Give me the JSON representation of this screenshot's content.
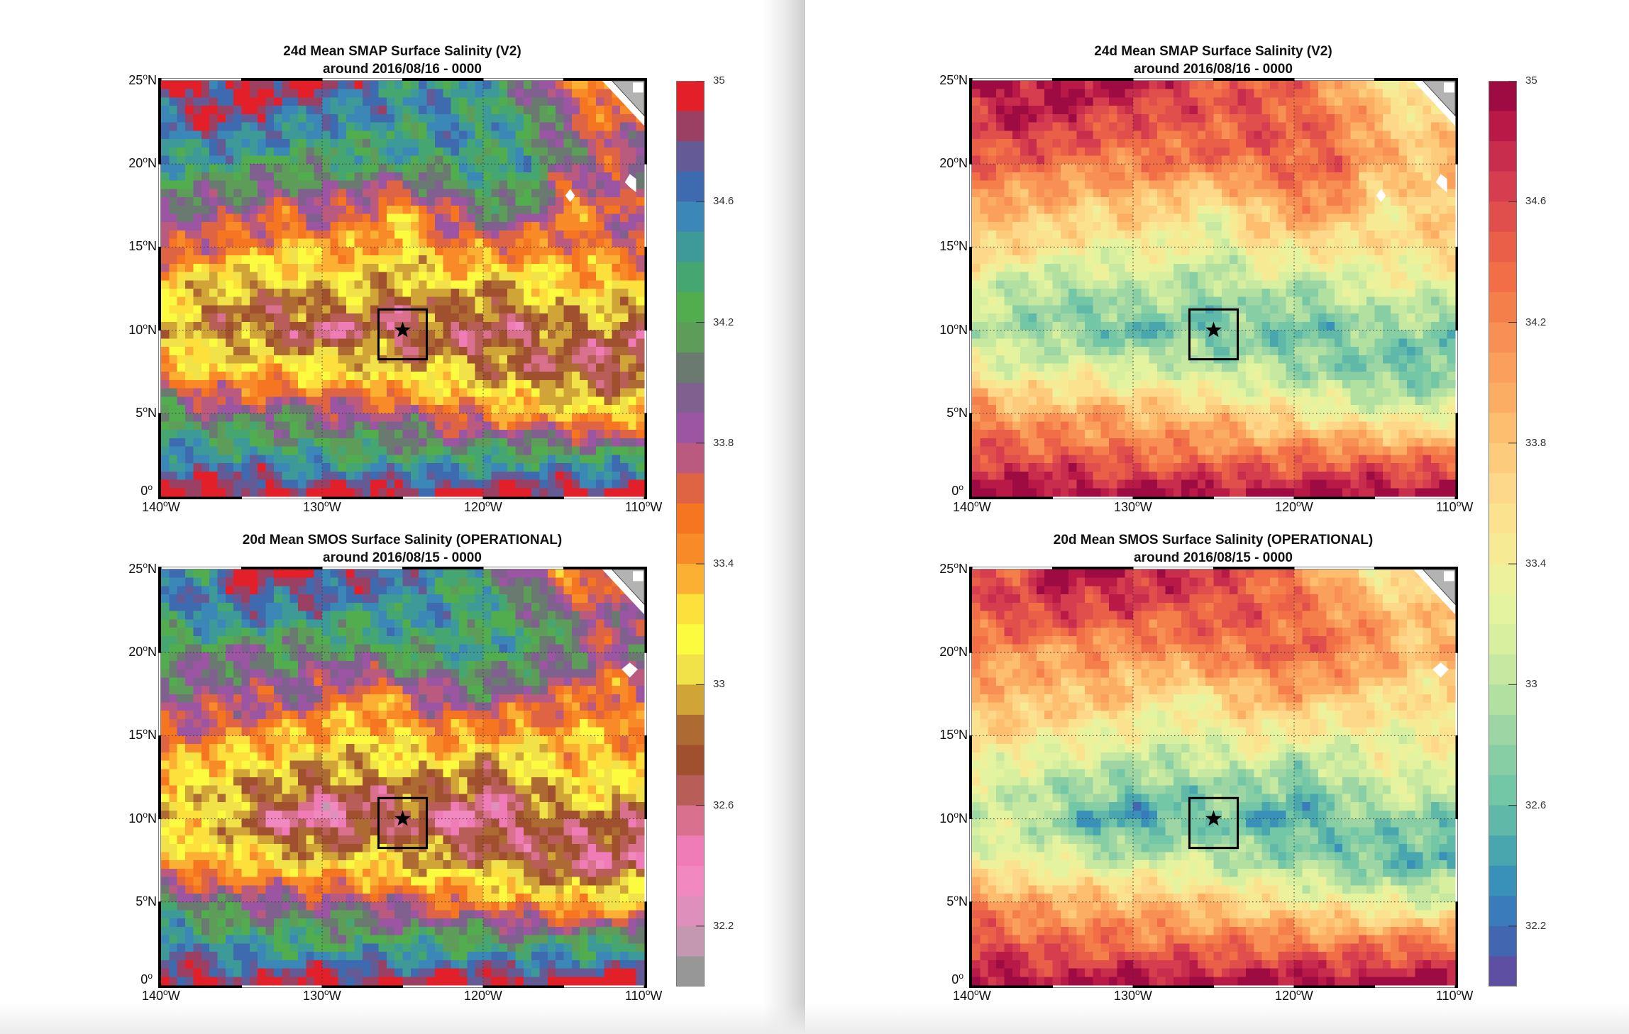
{
  "colormaps": {
    "left": [
      "#e3202a",
      "#9b3f63",
      "#645a96",
      "#3e6bb0",
      "#3b88b8",
      "#3d9a98",
      "#46a672",
      "#52ad4e",
      "#5e9c5a",
      "#6b7a70",
      "#80608f",
      "#9c55a3",
      "#bb5a7f",
      "#df6444",
      "#f57520",
      "#f98a28",
      "#fbb034",
      "#fde03c",
      "#fdfb40",
      "#f0e248",
      "#d1a438",
      "#ad6a32",
      "#a0502f",
      "#b85d57",
      "#d8708e",
      "#ef7cb7",
      "#f188bf",
      "#df8fbb",
      "#c498b0",
      "#979797"
    ],
    "right": [
      "#9e0a42",
      "#b81947",
      "#c92d4d",
      "#d63e4f",
      "#e04f4c",
      "#ea5f47",
      "#f26e47",
      "#f57f4b",
      "#f88f54",
      "#fa9f5c",
      "#fbae63",
      "#fdbe70",
      "#fdcb7c",
      "#fdd88a",
      "#fbe28f",
      "#f6ea94",
      "#eef19b",
      "#e4f3a0",
      "#d7ef9f",
      "#c6e8a0",
      "#b2e0a0",
      "#9dd6a4",
      "#88cea5",
      "#73c6a6",
      "#5fb8a8",
      "#4aa6ae",
      "#3990b8",
      "#3a7cbb",
      "#4267b0",
      "#5e4fa2"
    ]
  },
  "axes": {
    "lat_labels": [
      {
        "value": 25,
        "num": "25",
        "deg": "o",
        "hem": "N"
      },
      {
        "value": 20,
        "num": "20",
        "deg": "o",
        "hem": "N"
      },
      {
        "value": 15,
        "num": "15",
        "deg": "o",
        "hem": "N"
      },
      {
        "value": 10,
        "num": "10",
        "deg": "o",
        "hem": "N"
      },
      {
        "value": 5,
        "num": "5",
        "deg": "o",
        "hem": "N"
      },
      {
        "value": 0,
        "num": "0",
        "deg": "o",
        "hem": ""
      }
    ],
    "lon_labels": [
      {
        "value": -140,
        "num": "140",
        "deg": "o",
        "hem": "W"
      },
      {
        "value": -130,
        "num": "130",
        "deg": "o",
        "hem": "W"
      },
      {
        "value": -120,
        "num": "120",
        "deg": "o",
        "hem": "W"
      },
      {
        "value": -110,
        "num": "110",
        "deg": "o",
        "hem": "W"
      }
    ]
  },
  "colorbar": {
    "range": [
      32.0,
      35.0
    ],
    "step": 0.1,
    "ticks": [
      {
        "value": 35,
        "label": "35"
      },
      {
        "value": 34.6,
        "label": "34.6"
      },
      {
        "value": 34.2,
        "label": "34.2"
      },
      {
        "value": 33.8,
        "label": "33.8"
      },
      {
        "value": 33.4,
        "label": "33.4"
      },
      {
        "value": 33,
        "label": "33"
      },
      {
        "value": 32.6,
        "label": "32.6"
      },
      {
        "value": 32.2,
        "label": "32.2"
      }
    ]
  },
  "chart_data": [
    {
      "type": "heatmap",
      "title": "24d Mean SMAP Surface Salinity (V2)",
      "subtitle": "around 2016/08/16 - 0000",
      "colormap": "left",
      "xlim": [
        -140,
        -110
      ],
      "ylim": [
        0,
        25
      ],
      "grid_lon": [
        -140,
        -137.5,
        -135,
        -132.5,
        -130,
        -127.5,
        -125,
        -122.5,
        -120,
        -117.5,
        -115,
        -112.5,
        -110
      ],
      "grid_lat": [
        25,
        22.5,
        20,
        17.5,
        15,
        12.5,
        10,
        7.5,
        5,
        2.5,
        0
      ],
      "values": [
        [
          34.95,
          34.85,
          34.95,
          34.95,
          34.9,
          34.7,
          34.5,
          34.4,
          34.4,
          34.0,
          33.7,
          33.3,
          33.4
        ],
        [
          34.6,
          34.8,
          34.8,
          34.6,
          34.5,
          34.5,
          34.4,
          34.6,
          34.4,
          34.3,
          33.9,
          33.6,
          33.7
        ],
        [
          34.4,
          34.4,
          34.3,
          34.2,
          34.2,
          34.3,
          34.3,
          34.3,
          34.4,
          34.4,
          34.0,
          33.8,
          33.9
        ],
        [
          34.0,
          33.9,
          33.9,
          33.7,
          33.9,
          33.6,
          33.4,
          33.8,
          34.1,
          34.2,
          33.5,
          33.6,
          33.9
        ],
        [
          33.8,
          33.6,
          33.5,
          33.4,
          33.3,
          33.5,
          33.1,
          33.5,
          33.6,
          33.5,
          33.5,
          33.6,
          33.7
        ],
        [
          33.2,
          33.0,
          32.9,
          32.9,
          33.1,
          33.0,
          32.8,
          33.1,
          32.9,
          33.0,
          33.3,
          33.2,
          33.2
        ],
        [
          33.1,
          32.9,
          32.8,
          32.7,
          32.5,
          32.7,
          32.6,
          32.7,
          32.6,
          32.7,
          32.8,
          32.8,
          32.7
        ],
        [
          33.6,
          33.2,
          33.3,
          33.3,
          33.2,
          33.2,
          33.0,
          33.1,
          32.9,
          32.8,
          32.7,
          32.6,
          32.7
        ],
        [
          34.2,
          34.0,
          33.9,
          34.0,
          33.9,
          33.8,
          33.8,
          33.6,
          33.5,
          33.4,
          33.3,
          33.2,
          33.3
        ],
        [
          34.6,
          34.5,
          34.5,
          34.4,
          34.3,
          34.3,
          34.3,
          34.2,
          34.3,
          34.3,
          34.3,
          34.2,
          34.3
        ],
        [
          35.0,
          35.0,
          35.0,
          34.95,
          35.0,
          35.0,
          34.95,
          35.0,
          35.0,
          35.0,
          35.0,
          35.0,
          35.0
        ]
      ],
      "marker": {
        "lon": -125,
        "lat": 10,
        "box_lon": [
          -126.5,
          -123.5
        ],
        "box_lat": [
          8.25,
          11.25
        ]
      }
    },
    {
      "type": "heatmap",
      "title": "24d Mean SMAP Surface Salinity (V2)",
      "subtitle": "around 2016/08/16 - 0000",
      "colormap": "right",
      "xlim": [
        -140,
        -110
      ],
      "ylim": [
        0,
        25
      ],
      "grid_lon": [
        -140,
        -137.5,
        -135,
        -132.5,
        -130,
        -127.5,
        -125,
        -122.5,
        -120,
        -117.5,
        -115,
        -112.5,
        -110
      ],
      "grid_lat": [
        25,
        22.5,
        20,
        17.5,
        15,
        12.5,
        10,
        7.5,
        5,
        2.5,
        0
      ],
      "values": [
        [
          34.95,
          34.85,
          34.95,
          34.95,
          34.9,
          34.7,
          34.5,
          34.4,
          34.4,
          34.0,
          33.7,
          33.3,
          33.4
        ],
        [
          34.6,
          34.8,
          34.8,
          34.6,
          34.5,
          34.5,
          34.4,
          34.6,
          34.4,
          34.3,
          33.9,
          33.6,
          33.7
        ],
        [
          34.4,
          34.4,
          34.3,
          34.2,
          34.2,
          34.3,
          34.3,
          34.3,
          34.4,
          34.4,
          34.0,
          33.8,
          33.9
        ],
        [
          34.0,
          33.9,
          33.9,
          33.7,
          33.9,
          33.6,
          33.4,
          33.8,
          34.1,
          34.2,
          33.5,
          33.6,
          33.9
        ],
        [
          33.8,
          33.6,
          33.5,
          33.4,
          33.3,
          33.5,
          33.1,
          33.5,
          33.6,
          33.5,
          33.5,
          33.6,
          33.7
        ],
        [
          33.2,
          33.0,
          32.9,
          32.9,
          33.1,
          33.0,
          32.8,
          33.1,
          32.9,
          33.0,
          33.3,
          33.2,
          33.2
        ],
        [
          33.1,
          32.9,
          32.8,
          32.7,
          32.5,
          32.7,
          32.6,
          32.7,
          32.6,
          32.7,
          32.8,
          32.8,
          32.7
        ],
        [
          33.6,
          33.2,
          33.3,
          33.3,
          33.2,
          33.2,
          33.0,
          33.1,
          32.9,
          32.8,
          32.7,
          32.6,
          32.7
        ],
        [
          34.2,
          34.0,
          33.9,
          34.0,
          33.9,
          33.8,
          33.8,
          33.6,
          33.5,
          33.4,
          33.3,
          33.2,
          33.3
        ],
        [
          34.6,
          34.5,
          34.5,
          34.4,
          34.3,
          34.3,
          34.3,
          34.2,
          34.3,
          34.3,
          34.3,
          34.2,
          34.3
        ],
        [
          35.0,
          35.0,
          35.0,
          34.95,
          35.0,
          35.0,
          34.95,
          35.0,
          35.0,
          35.0,
          35.0,
          35.0,
          35.0
        ]
      ],
      "marker": {
        "lon": -125,
        "lat": 10,
        "box_lon": [
          -126.5,
          -123.5
        ],
        "box_lat": [
          8.25,
          11.25
        ]
      }
    },
    {
      "type": "heatmap",
      "title": "20d Mean SMOS Surface Salinity (OPERATIONAL)",
      "subtitle": "around 2016/08/15 - 0000",
      "colormap": "left",
      "xlim": [
        -140,
        -110
      ],
      "ylim": [
        0,
        25
      ],
      "grid_lon": [
        -140,
        -137.5,
        -135,
        -132.5,
        -130,
        -127.5,
        -125,
        -122.5,
        -120,
        -117.5,
        -115,
        -112.5,
        -110
      ],
      "grid_lat": [
        25,
        22.5,
        20,
        17.5,
        15,
        12.5,
        10,
        7.5,
        5,
        2.5,
        0
      ],
      "values": [
        [
          34.7,
          34.4,
          34.9,
          35.0,
          34.8,
          34.9,
          34.6,
          34.4,
          34.3,
          33.9,
          33.3,
          33.5,
          33.6
        ],
        [
          34.5,
          34.6,
          34.7,
          34.5,
          34.6,
          34.4,
          34.5,
          34.5,
          34.3,
          34.2,
          34.0,
          33.7,
          33.9
        ],
        [
          34.2,
          34.1,
          34.0,
          34.1,
          34.0,
          34.2,
          34.3,
          34.3,
          34.4,
          34.3,
          34.1,
          33.8,
          33.9
        ],
        [
          33.9,
          33.9,
          33.8,
          33.9,
          33.8,
          33.4,
          33.6,
          33.9,
          34.0,
          33.8,
          33.7,
          33.5,
          33.7
        ],
        [
          33.7,
          33.6,
          33.5,
          33.4,
          33.3,
          33.2,
          33.3,
          33.5,
          33.4,
          33.3,
          33.4,
          33.3,
          33.6
        ],
        [
          33.3,
          33.1,
          33.0,
          33.0,
          32.8,
          32.9,
          32.9,
          33.0,
          32.7,
          32.9,
          33.2,
          33.3,
          33.1
        ],
        [
          32.9,
          33.2,
          32.8,
          32.5,
          32.4,
          32.5,
          32.7,
          32.5,
          32.4,
          32.7,
          32.8,
          32.8,
          32.7
        ],
        [
          33.5,
          33.2,
          33.3,
          33.1,
          33.0,
          33.2,
          33.0,
          32.9,
          32.9,
          32.7,
          32.6,
          32.5,
          32.6
        ],
        [
          34.2,
          34.0,
          33.9,
          33.9,
          33.9,
          33.8,
          33.7,
          33.6,
          33.5,
          33.4,
          33.3,
          33.2,
          33.2
        ],
        [
          34.6,
          34.5,
          34.4,
          34.4,
          34.3,
          34.3,
          34.3,
          34.3,
          34.3,
          34.2,
          34.3,
          34.3,
          34.4
        ],
        [
          35.0,
          35.0,
          34.9,
          34.9,
          35.0,
          35.0,
          35.0,
          34.95,
          35.0,
          35.0,
          35.0,
          35.0,
          35.0
        ]
      ],
      "marker": {
        "lon": -125,
        "lat": 10,
        "box_lon": [
          -126.5,
          -123.5
        ],
        "box_lat": [
          8.25,
          11.25
        ]
      }
    },
    {
      "type": "heatmap",
      "title": "20d Mean SMOS Surface Salinity (OPERATIONAL)",
      "subtitle": "around 2016/08/15 - 0000",
      "colormap": "right",
      "xlim": [
        -140,
        -110
      ],
      "ylim": [
        0,
        25
      ],
      "grid_lon": [
        -140,
        -137.5,
        -135,
        -132.5,
        -130,
        -127.5,
        -125,
        -122.5,
        -120,
        -117.5,
        -115,
        -112.5,
        -110
      ],
      "grid_lat": [
        25,
        22.5,
        20,
        17.5,
        15,
        12.5,
        10,
        7.5,
        5,
        2.5,
        0
      ],
      "values": [
        [
          34.7,
          34.4,
          34.9,
          35.0,
          34.8,
          34.9,
          34.6,
          34.4,
          34.3,
          33.9,
          33.3,
          33.5,
          33.6
        ],
        [
          34.5,
          34.6,
          34.7,
          34.5,
          34.6,
          34.4,
          34.5,
          34.5,
          34.3,
          34.2,
          34.0,
          33.7,
          33.9
        ],
        [
          34.2,
          34.1,
          34.0,
          34.1,
          34.0,
          34.2,
          34.3,
          34.3,
          34.4,
          34.3,
          34.1,
          33.8,
          33.9
        ],
        [
          33.9,
          33.9,
          33.8,
          33.9,
          33.8,
          33.4,
          33.6,
          33.9,
          34.0,
          33.8,
          33.7,
          33.5,
          33.7
        ],
        [
          33.7,
          33.6,
          33.5,
          33.4,
          33.3,
          33.2,
          33.3,
          33.5,
          33.4,
          33.3,
          33.4,
          33.3,
          33.6
        ],
        [
          33.3,
          33.1,
          33.0,
          33.0,
          32.8,
          32.9,
          32.9,
          33.0,
          32.7,
          32.9,
          33.2,
          33.3,
          33.1
        ],
        [
          32.9,
          33.2,
          32.8,
          32.5,
          32.4,
          32.5,
          32.7,
          32.5,
          32.4,
          32.7,
          32.8,
          32.8,
          32.7
        ],
        [
          33.5,
          33.2,
          33.3,
          33.1,
          33.0,
          33.2,
          33.0,
          32.9,
          32.9,
          32.7,
          32.6,
          32.5,
          32.6
        ],
        [
          34.2,
          34.0,
          33.9,
          33.9,
          33.9,
          33.8,
          33.7,
          33.6,
          33.5,
          33.4,
          33.3,
          33.2,
          33.2
        ],
        [
          34.6,
          34.5,
          34.4,
          34.4,
          34.3,
          34.3,
          34.3,
          34.3,
          34.3,
          34.2,
          34.3,
          34.3,
          34.4
        ],
        [
          35.0,
          35.0,
          34.9,
          34.9,
          35.0,
          35.0,
          35.0,
          34.95,
          35.0,
          35.0,
          35.0,
          35.0,
          35.0
        ]
      ],
      "marker": {
        "lon": -125,
        "lat": 10,
        "box_lon": [
          -126.5,
          -123.5
        ],
        "box_lat": [
          8.25,
          11.25
        ]
      }
    }
  ]
}
